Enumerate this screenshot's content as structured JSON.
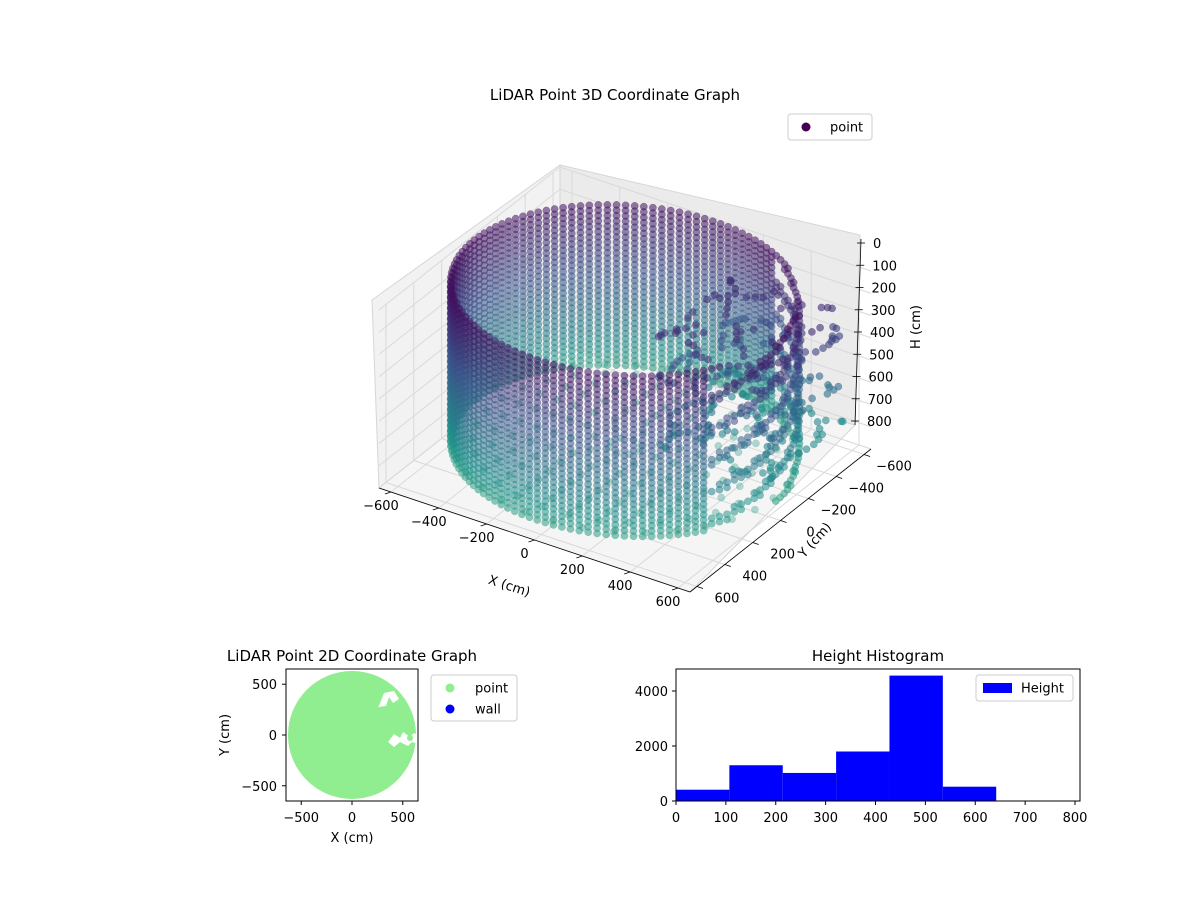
{
  "chart_data": [
    {
      "type": "scatter",
      "projection": "3d",
      "title": "LiDAR Point 3D Coordinate Graph",
      "xlabel": "X (cm)",
      "ylabel": "Y (cm)",
      "zlabel": "H (cm)",
      "xlim": [
        -650,
        650
      ],
      "ylim": [
        -650,
        650
      ],
      "zlim": [
        0,
        800
      ],
      "z_inverted": true,
      "xticks": [
        "−600",
        "−400",
        "−200",
        "0",
        "200",
        "400",
        "600"
      ],
      "yticks": [
        "−600",
        "−400",
        "−200",
        "0",
        "200",
        "400",
        "600"
      ],
      "zticks": [
        "0",
        "100",
        "200",
        "300",
        "400",
        "500",
        "600",
        "700",
        "800"
      ],
      "grid": true,
      "legend": {
        "entries": [
          "point"
        ],
        "placement": "top-right"
      },
      "colormap": "viridis",
      "series": [
        {
          "name": "point",
          "shape": "cylindrical wall with floor and scattered obstruction points",
          "radius_cm": 630,
          "height_range_cm": [
            0,
            720
          ],
          "color_low_height": "#3b0f70",
          "color_high_height": "#2db79a"
        }
      ]
    },
    {
      "type": "scatter",
      "title": "LiDAR Point 2D Coordinate Graph",
      "xlabel": "X (cm)",
      "ylabel": "Y (cm)",
      "xlim": [
        -650,
        650
      ],
      "ylim": [
        -650,
        650
      ],
      "xticks": [
        "−500",
        "0",
        "500"
      ],
      "yticks": [
        "−500",
        "0",
        "500"
      ],
      "legend": {
        "entries": [
          "point",
          "wall"
        ],
        "placement": "outside-right"
      },
      "series": [
        {
          "name": "point",
          "color": "#90ee90",
          "shape": "filled disc",
          "radius_cm": 630
        },
        {
          "name": "wall",
          "color": "#0000ff"
        }
      ]
    },
    {
      "type": "bar",
      "subtype": "histogram",
      "title": "Height Histogram",
      "xlabel": "",
      "ylabel": "",
      "xlim": [
        0,
        810
      ],
      "ylim": [
        0,
        4800
      ],
      "xticks": [
        "0",
        "100",
        "200",
        "300",
        "400",
        "500",
        "600",
        "700",
        "800"
      ],
      "yticks": [
        "0",
        "2000",
        "4000"
      ],
      "legend": {
        "entries": [
          "Height"
        ],
        "placement": "top-right"
      },
      "color": "#0000ff",
      "bin_edges": [
        0,
        107,
        214,
        321,
        428,
        535,
        642,
        749,
        810
      ],
      "values": [
        410,
        1300,
        1020,
        1800,
        4560,
        520,
        0,
        0
      ]
    }
  ]
}
